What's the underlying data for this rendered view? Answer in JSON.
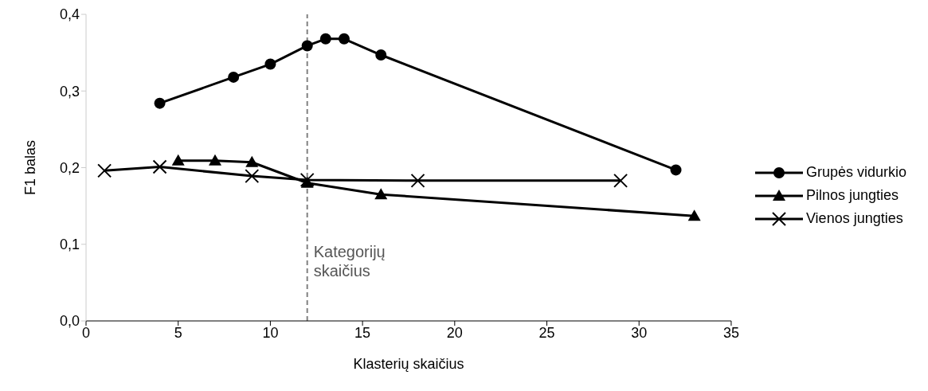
{
  "chart_data": {
    "type": "line",
    "xlabel": "Klasterių skaičius",
    "ylabel": "F1 balas",
    "xlim": [
      0,
      35
    ],
    "xticks": [
      0,
      5,
      10,
      15,
      20,
      25,
      30,
      35
    ],
    "ylim": [
      0,
      0.4
    ],
    "yticks": [
      {
        "value": 0,
        "label": "0,0"
      },
      {
        "value": 0.1,
        "label": "0,1"
      },
      {
        "value": 0.2,
        "label": "0,2"
      },
      {
        "value": 0.3,
        "label": "0,3"
      },
      {
        "value": 0.4,
        "label": "0,4"
      }
    ],
    "grid": false,
    "legend": "right",
    "line_style": "solid",
    "series": [
      {
        "name": "Grupės vidurkio",
        "color": "#000000",
        "marker": "circle",
        "x": [
          4,
          8,
          10,
          12,
          13,
          14,
          16,
          32
        ],
        "values": [
          0.284,
          0.318,
          0.335,
          0.359,
          0.368,
          0.368,
          0.347,
          0.197
        ]
      },
      {
        "name": "Pilnos jungties",
        "color": "#000000",
        "marker": "triangle",
        "x": [
          5,
          7,
          9,
          12,
          16,
          33
        ],
        "values": [
          0.209,
          0.209,
          0.207,
          0.18,
          0.165,
          0.137
        ]
      },
      {
        "name": "Vienos jungties",
        "color": "#000000",
        "marker": "cross",
        "x": [
          1,
          4,
          9,
          12,
          18,
          29
        ],
        "values": [
          0.196,
          0.201,
          0.189,
          0.184,
          0.183,
          0.183
        ]
      }
    ],
    "ref_lines": [
      {
        "axis": "x",
        "value": 12,
        "label": "Kategorijų\nskaičius",
        "color": "#808080",
        "line_style": "dashed"
      }
    ]
  }
}
